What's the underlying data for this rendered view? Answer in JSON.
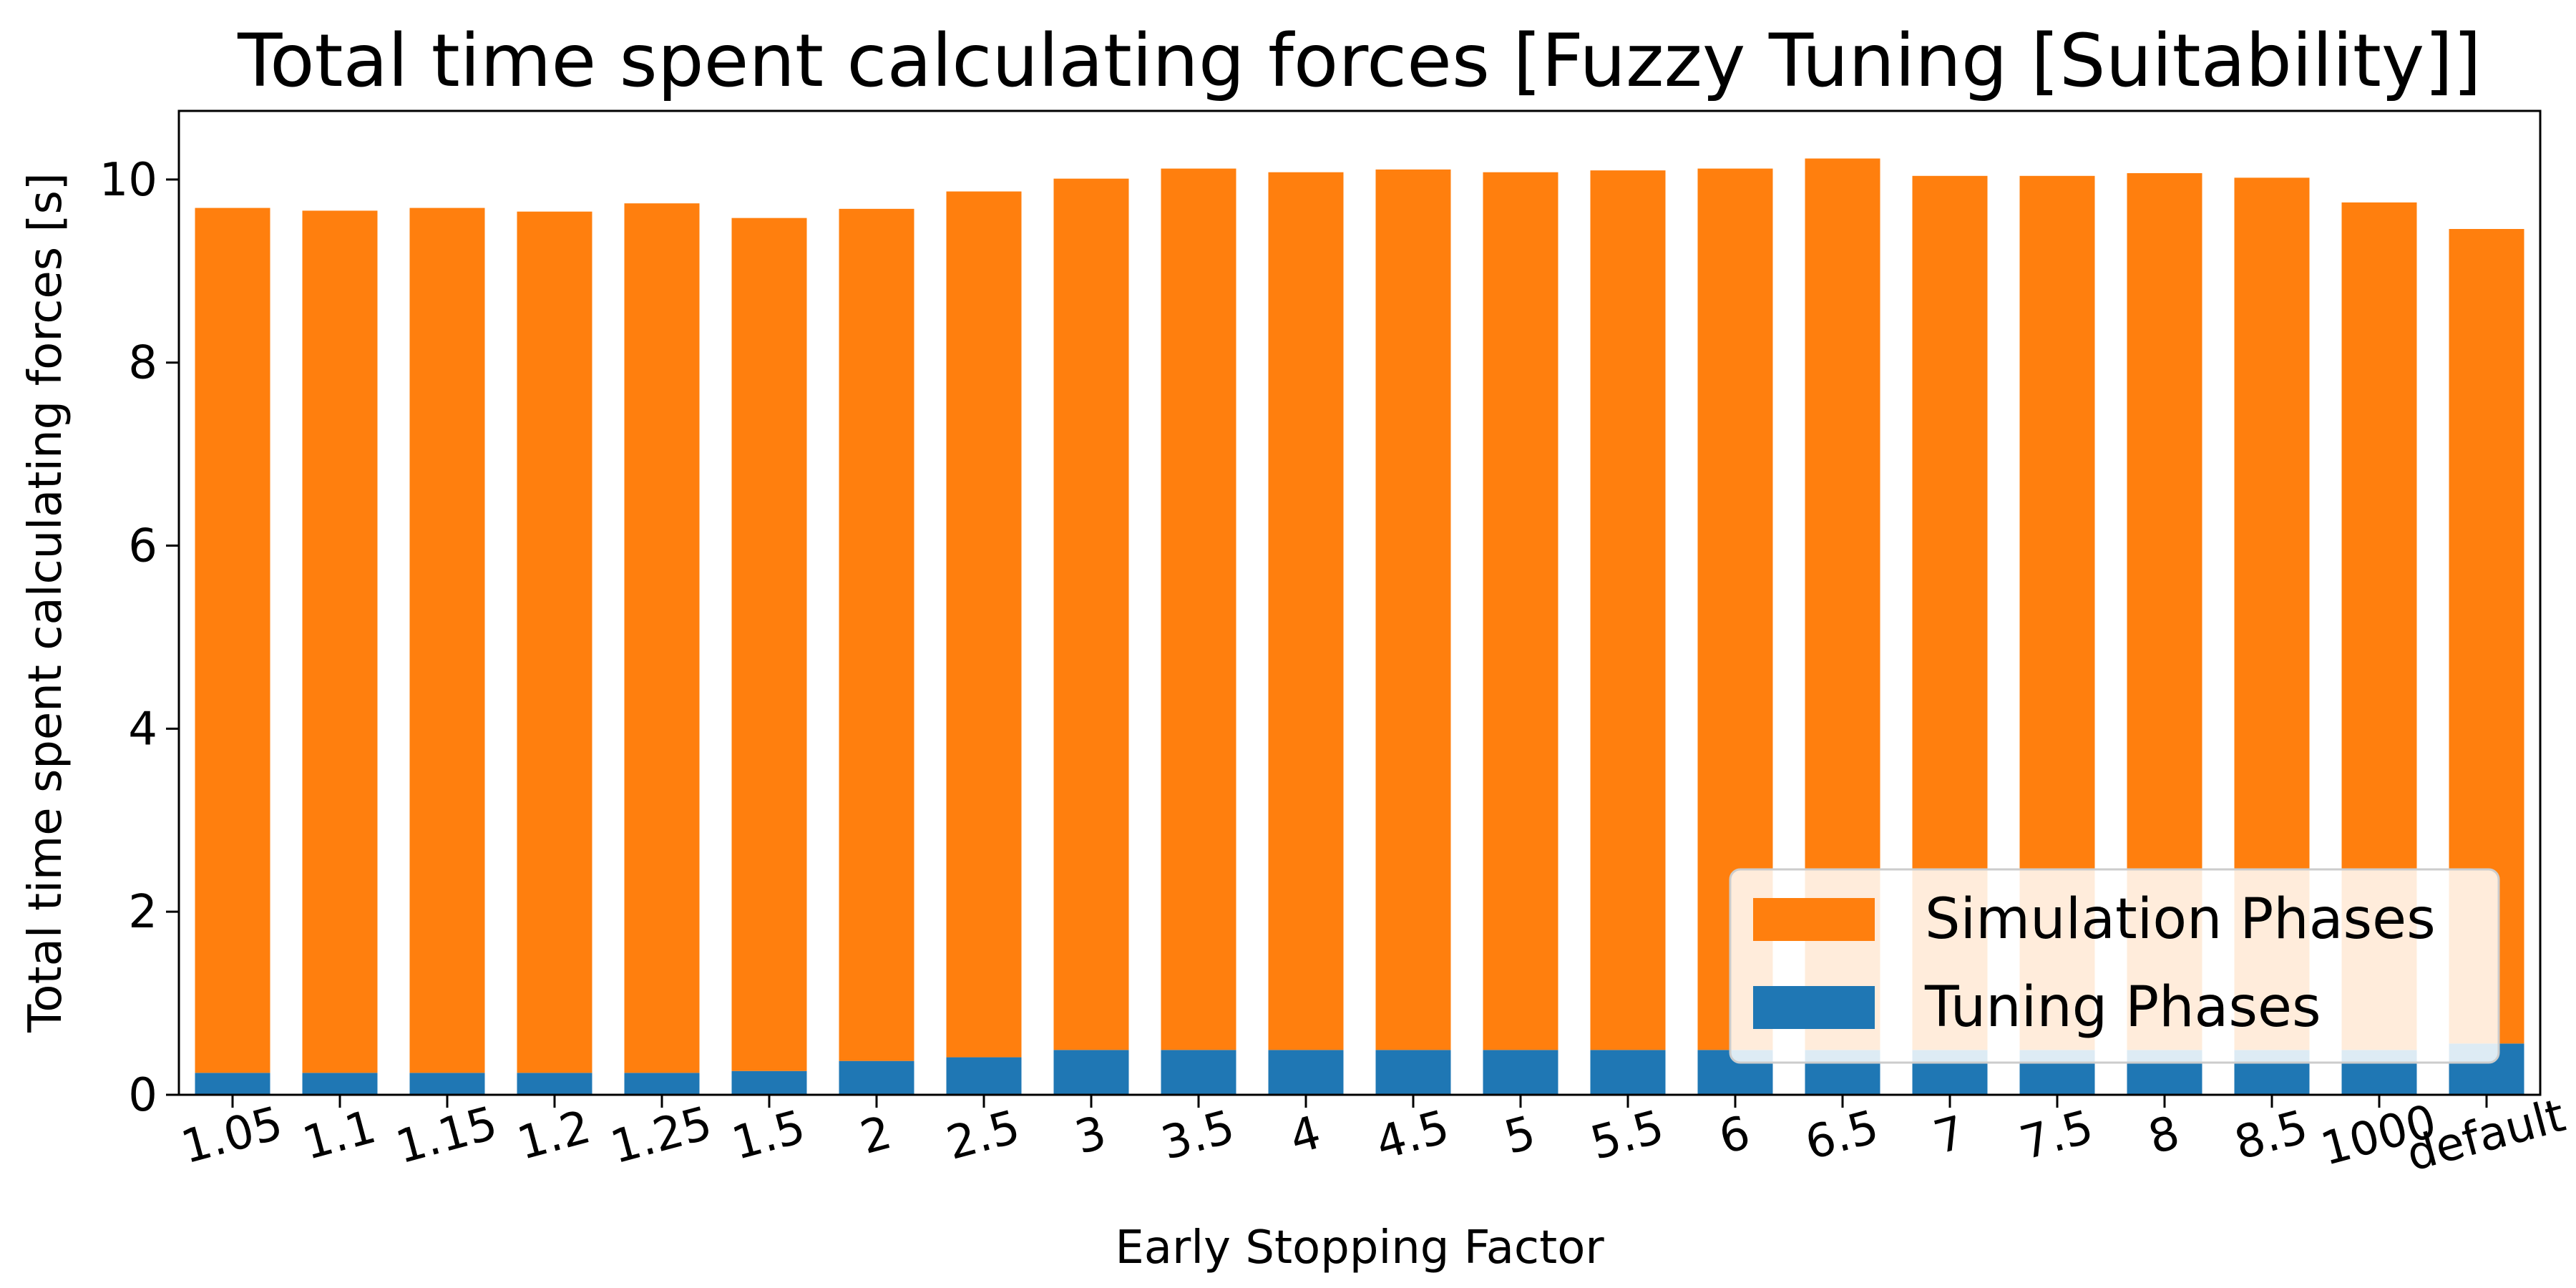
{
  "chart_data": {
    "type": "bar",
    "stacked": true,
    "title": "Total time spent calculating forces [Fuzzy Tuning [Suitability]]",
    "xlabel": "Early Stopping Factor",
    "ylabel": "Total time spent calculating forces [s]",
    "ylim": [
      0,
      10.75
    ],
    "yticks": [
      "0",
      "2",
      "4",
      "6",
      "8",
      "10"
    ],
    "grid": false,
    "legend_position": "bottom-right",
    "categories": [
      "1.05",
      "1.1",
      "1.15",
      "1.2",
      "1.25",
      "1.5",
      "2",
      "2.5",
      "3",
      "3.5",
      "4",
      "4.5",
      "5",
      "5.5",
      "6",
      "6.5",
      "7",
      "7.5",
      "8",
      "8.5",
      "1000",
      "default"
    ],
    "series": [
      {
        "name": "Tuning Phases",
        "color": "#1f77b4",
        "values": [
          0.24,
          0.24,
          0.24,
          0.24,
          0.24,
          0.26,
          0.37,
          0.41,
          0.49,
          0.49,
          0.49,
          0.49,
          0.49,
          0.49,
          0.49,
          0.49,
          0.49,
          0.49,
          0.49,
          0.49,
          0.49,
          0.56
        ]
      },
      {
        "name": "Simulation Phases",
        "color": "#ff7f0e",
        "values": [
          9.45,
          9.42,
          9.45,
          9.41,
          9.5,
          9.32,
          9.31,
          9.46,
          9.52,
          9.63,
          9.59,
          9.62,
          9.59,
          9.61,
          9.63,
          9.74,
          9.55,
          9.55,
          9.58,
          9.53,
          9.26,
          8.9
        ]
      }
    ],
    "legend_order": [
      "Simulation Phases",
      "Tuning Phases"
    ]
  }
}
